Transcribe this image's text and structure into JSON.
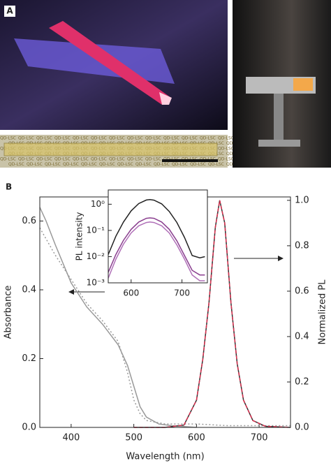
{
  "panel_labels": [
    "A",
    "B"
  ],
  "photo_text": "QD-LSC",
  "chart_data": [
    {
      "type": "line",
      "x_label": "Wavelength (nm)",
      "y_label": "Absorbance",
      "y2_label": "Normalized PL",
      "xlim": [
        350,
        750
      ],
      "xticks": [
        400,
        500,
        600,
        700
      ],
      "ylim": [
        0,
        0.67
      ],
      "yticks": [
        {
          "value": 0,
          "label": "0.0"
        },
        0.2,
        0.4,
        0.6
      ],
      "y2lim": [
        0,
        1.015
      ],
      "y2ticks": [
        {
          "value": 0,
          "label": "0.0"
        },
        0.2,
        0.4,
        0.6,
        0.8,
        {
          "value": 1,
          "label": "1.0"
        }
      ],
      "grid": false,
      "series": [
        {
          "color": "#999999",
          "dash": "solid",
          "x": [
            350,
            360,
            375,
            400,
            425,
            450,
            475,
            490,
            500,
            510,
            520,
            540,
            560,
            600
          ],
          "values": [
            0.64,
            0.6,
            0.53,
            0.42,
            0.35,
            0.3,
            0.24,
            0.18,
            0.12,
            0.06,
            0.03,
            0.01,
            0.005,
            0
          ]
        },
        {
          "color": "#999999",
          "dash": "dotted",
          "x": [
            350,
            375,
            400,
            425,
            450,
            475,
            490,
            500,
            510,
            520,
            550,
            600,
            650,
            700,
            750
          ],
          "values": [
            0.58,
            0.5,
            0.43,
            0.36,
            0.31,
            0.25,
            0.16,
            0.08,
            0.04,
            0.02,
            0.01,
            0.01,
            0.005,
            0.005,
            0.005
          ]
        },
        {
          "color": "#333333",
          "dash": "solid",
          "axis": "y2",
          "x": [
            500,
            550,
            580,
            600,
            610,
            620,
            630,
            637,
            645,
            655,
            665,
            675,
            690,
            710,
            750
          ],
          "values": [
            0,
            0,
            0.01,
            0.12,
            0.3,
            0.55,
            0.88,
            1.0,
            0.9,
            0.55,
            0.28,
            0.12,
            0.03,
            0.005,
            0
          ]
        },
        {
          "color": "#d9304f",
          "dash": "dashed",
          "axis": "y2",
          "x": [
            500,
            550,
            580,
            600,
            610,
            620,
            630,
            637,
            645,
            655,
            665,
            675,
            690,
            710,
            750
          ],
          "values": [
            0,
            0,
            0.01,
            0.12,
            0.3,
            0.55,
            0.88,
            1.0,
            0.9,
            0.55,
            0.28,
            0.12,
            0.03,
            0.005,
            0
          ]
        }
      ]
    },
    {
      "type": "line",
      "y_label": "PL intensity",
      "ylog": true,
      "xlim": [
        555,
        750
      ],
      "xticks": [
        600,
        700
      ],
      "ylim": [
        0.001,
        3.5
      ],
      "yticks": [
        {
          "value": 1,
          "label": "10⁰"
        },
        {
          "value": 0.1,
          "label": "10⁻¹"
        },
        {
          "value": 0.01,
          "label": "10⁻²"
        },
        {
          "value": 0.001,
          "label": "10⁻³"
        }
      ],
      "series": [
        {
          "color": "#222222",
          "dash": "solid",
          "x": [
            555,
            570,
            585,
            600,
            615,
            630,
            637,
            645,
            660,
            675,
            690,
            705,
            720,
            735,
            745
          ],
          "values": [
            0.012,
            0.06,
            0.21,
            0.56,
            1.06,
            1.45,
            1.5,
            1.43,
            1.03,
            0.53,
            0.2,
            0.054,
            0.011,
            0.009,
            0.01
          ]
        },
        {
          "color": "#8a3f8f",
          "dash": "solid",
          "x": [
            555,
            570,
            585,
            600,
            615,
            630,
            637,
            645,
            660,
            675,
            690,
            705,
            720,
            735,
            745
          ],
          "values": [
            0.0025,
            0.012,
            0.042,
            0.11,
            0.21,
            0.29,
            0.3,
            0.29,
            0.21,
            0.11,
            0.04,
            0.011,
            0.003,
            0.002,
            0.002
          ]
        },
        {
          "color": "#b070b8",
          "dash": "solid",
          "x": [
            555,
            570,
            585,
            600,
            615,
            630,
            637,
            645,
            660,
            675,
            690,
            705,
            720,
            735,
            745
          ],
          "values": [
            0.0015,
            0.008,
            0.03,
            0.08,
            0.15,
            0.2,
            0.21,
            0.2,
            0.15,
            0.08,
            0.028,
            0.008,
            0.002,
            0.0012,
            0.0012
          ]
        }
      ]
    }
  ]
}
